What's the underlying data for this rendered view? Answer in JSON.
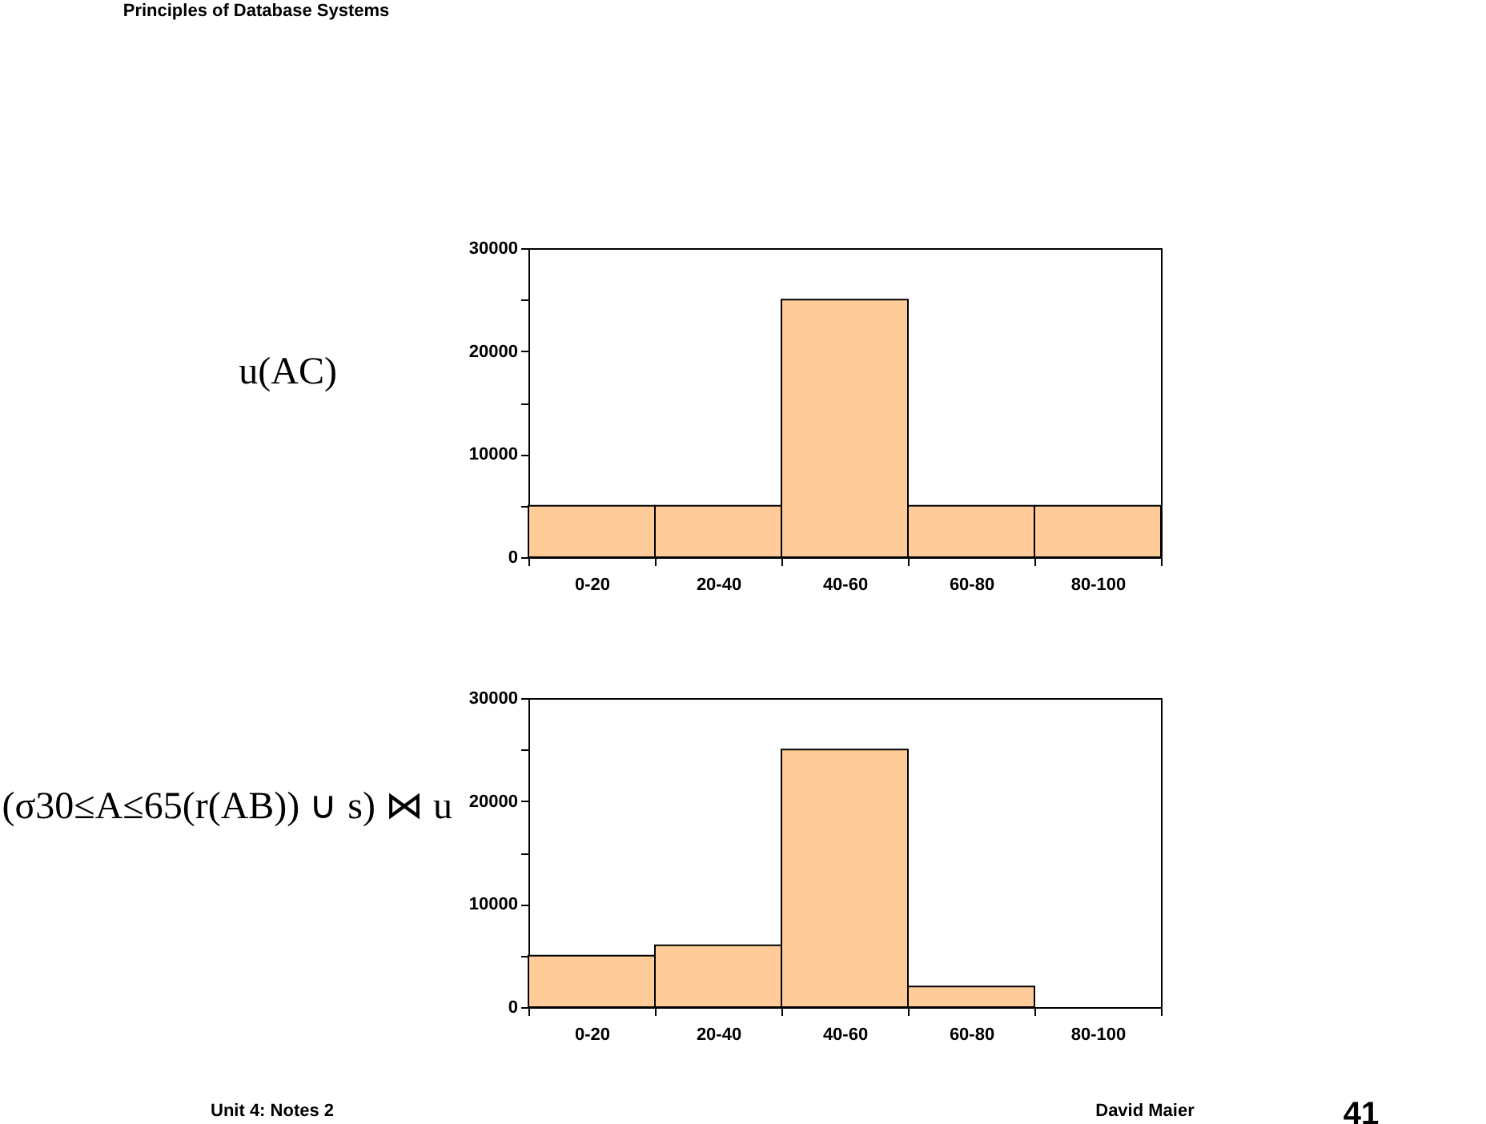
{
  "chart_data": [
    {
      "type": "bar",
      "ylabel": "u(AC)",
      "categories": [
        "0-20",
        "20-40",
        "40-60",
        "60-80",
        "80-100"
      ],
      "values": [
        5000,
        5000,
        25000,
        5000,
        5000
      ],
      "color": "#ffcc99",
      "ylim": [
        0,
        30000
      ],
      "yticks": [
        0,
        {
          "value": 5000,
          "label": null
        },
        10000,
        {
          "value": 15000,
          "label": null
        },
        20000,
        {
          "value": 25000,
          "label": null
        },
        30000
      ],
      "grid": false,
      "annotations": [
        "Principles of Database Systems"
      ]
    },
    {
      "type": "bar",
      "ylabel": "(σ30≤A≤65(r(AB)) ∪ s) ⋈ u",
      "categories": [
        "0-20",
        "20-40",
        "40-60",
        "60-80",
        "80-100"
      ],
      "values": [
        5000,
        6000,
        25000,
        2000,
        0
      ],
      "color": "#ffcc99",
      "ylim": [
        0,
        30000
      ],
      "yticks": [
        0,
        {
          "value": 5000,
          "label": null
        },
        10000,
        {
          "value": 15000,
          "label": null
        },
        20000,
        {
          "value": 25000,
          "label": null
        },
        30000
      ],
      "grid": false,
      "annotations": [
        "Unit 4: Notes 2",
        "David Maier",
        "41"
      ]
    }
  ]
}
